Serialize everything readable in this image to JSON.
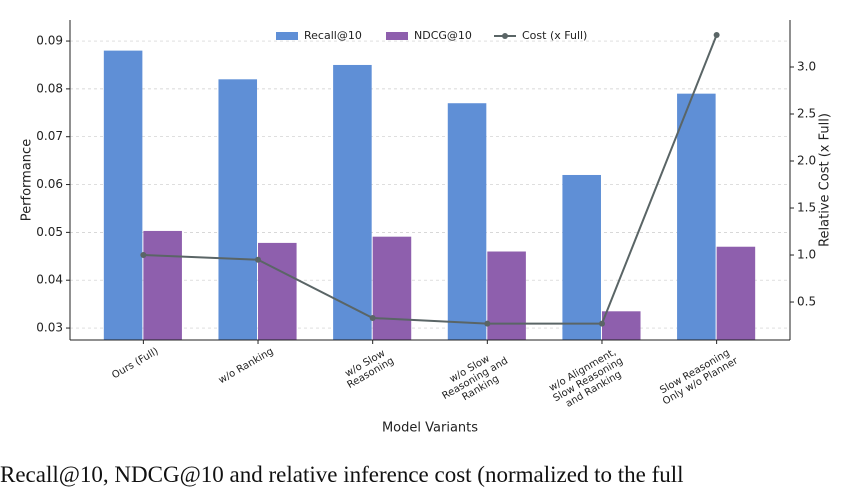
{
  "chart_data": {
    "type": "bar",
    "categories": [
      "Ours (Full)",
      "w/o Ranking",
      "w/o Slow\nReasoning",
      "w/o Slow\nReasoning and\nRanking",
      "w/o Alignment,\nSlow Reasoning\nand Ranking",
      "Slow Reasoning\nOnly w/o Planner"
    ],
    "series": [
      {
        "name": "Recall@10",
        "color": "#5f8fd6",
        "values": [
          0.088,
          0.082,
          0.085,
          0.077,
          0.062,
          0.079
        ]
      },
      {
        "name": "NDCG@10",
        "color": "#8e5fad",
        "values": [
          0.0503,
          0.0478,
          0.0491,
          0.046,
          0.0335,
          0.047
        ]
      },
      {
        "name": "Cost (x Full)",
        "color": "#5a6566",
        "type": "line",
        "axis": "y2",
        "values": [
          1.0,
          0.95,
          0.33,
          0.27,
          0.27,
          3.34
        ]
      }
    ],
    "xlabel": "Model Variants",
    "ylabel": "Performance",
    "y2label": "Relative Cost (x Full)",
    "ylim": [
      0.0275,
      0.0944
    ],
    "yticks": [
      0.03,
      0.04,
      0.05,
      0.06,
      0.07,
      0.08,
      0.09
    ],
    "y2lim": [
      0.096,
      3.5
    ],
    "y2ticks": [
      0.5,
      {
        "value": 1,
        "label": "1.0"
      },
      1.5,
      {
        "value": 2,
        "label": "2.0"
      },
      2.5,
      {
        "value": 3,
        "label": "3.0"
      }
    ],
    "grid": true,
    "legend": "top",
    "caption": "Recall@10, NDCG@10 and relative inference cost (normalized to the full"
  }
}
